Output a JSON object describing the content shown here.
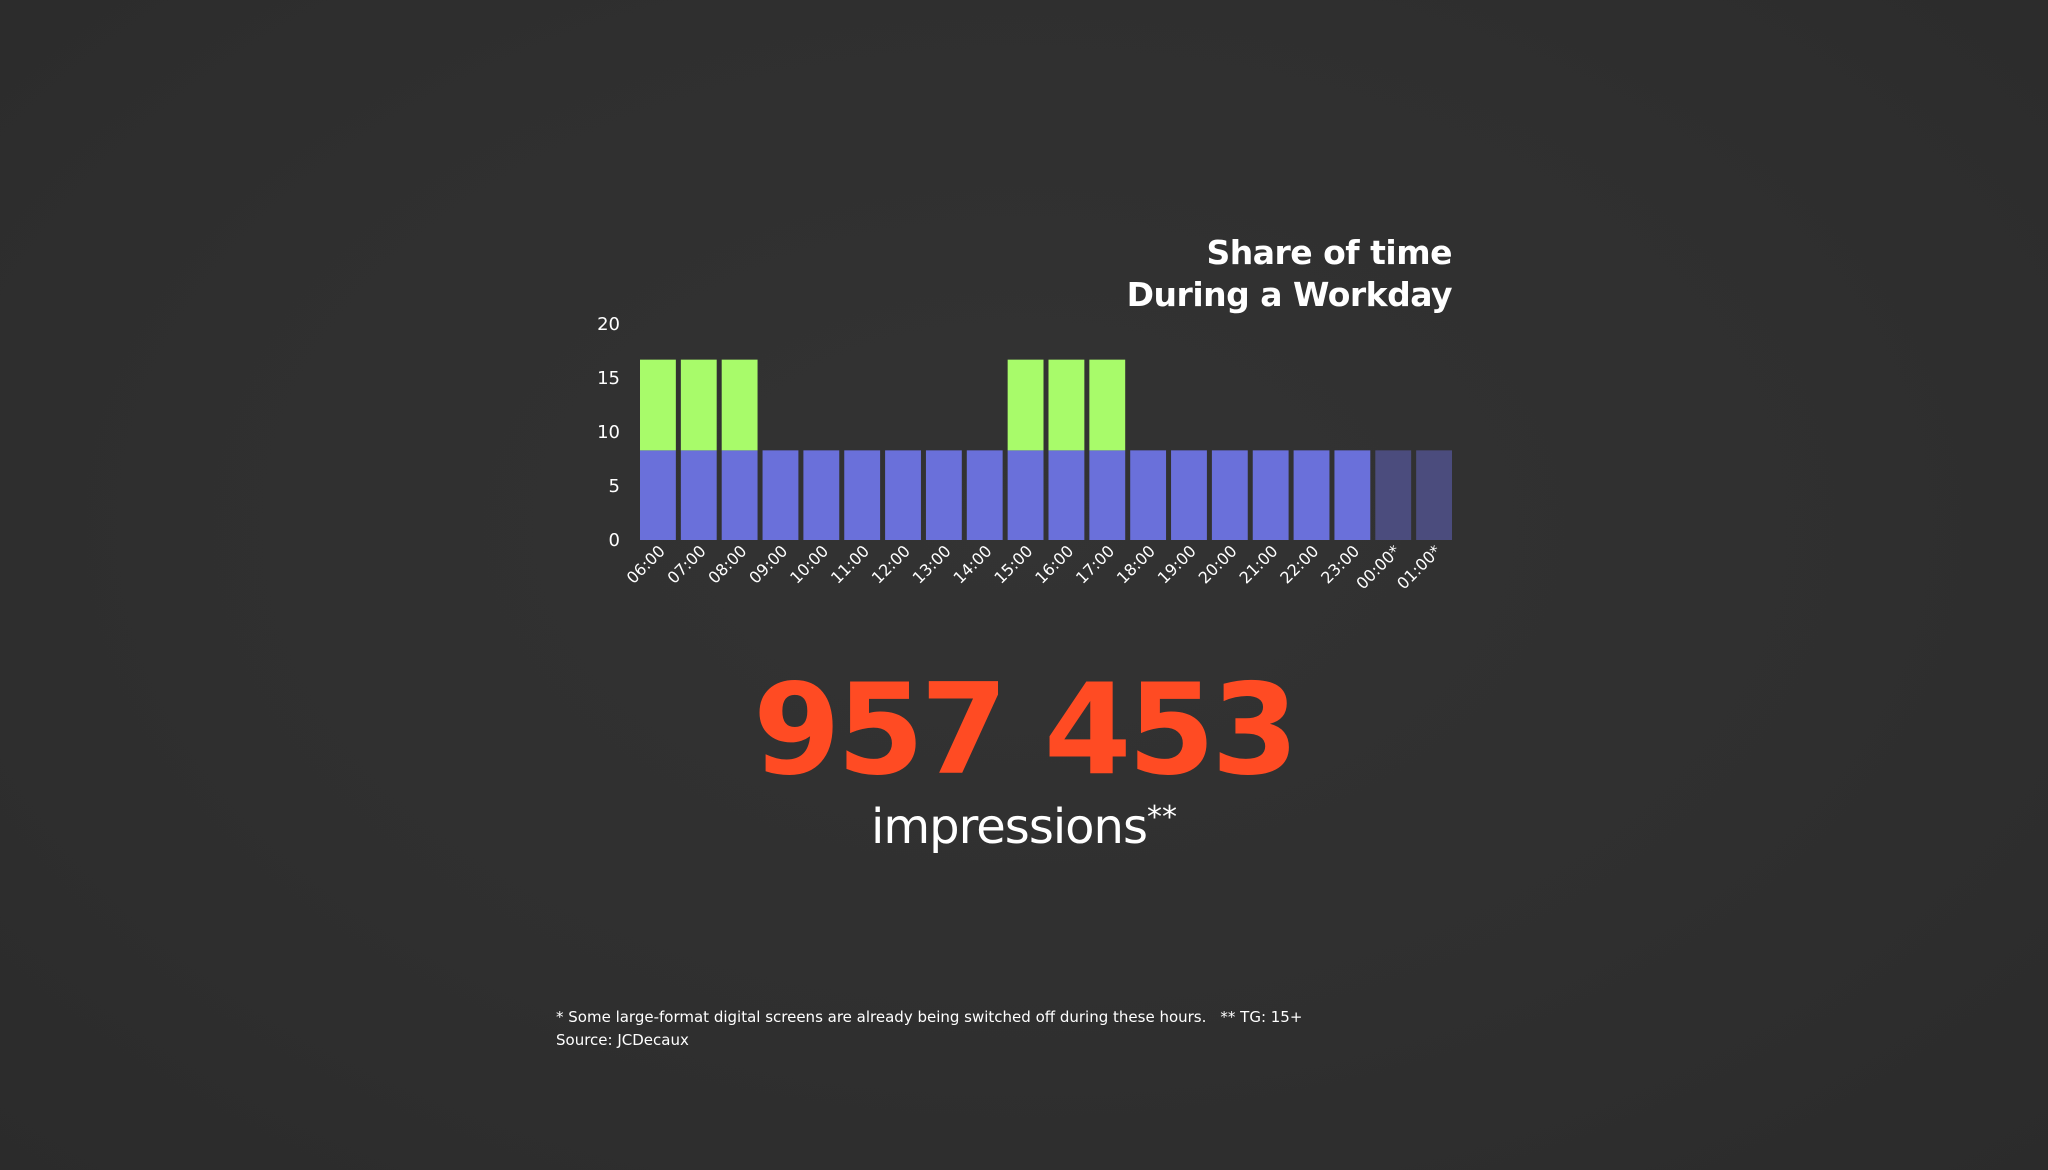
{
  "chart_data": {
    "type": "bar",
    "title_lines": [
      "Share of time",
      "During a Workday"
    ],
    "categories": [
      "06:00",
      "07:00",
      "08:00",
      "09:00",
      "10:00",
      "11:00",
      "12:00",
      "13:00",
      "14:00",
      "15:00",
      "16:00",
      "17:00",
      "18:00",
      "19:00",
      "20:00",
      "21:00",
      "22:00",
      "23:00",
      "00:00*",
      "01:00*"
    ],
    "values": [
      16.7,
      16.7,
      16.7,
      8.3,
      8.3,
      8.3,
      8.3,
      8.3,
      8.3,
      16.7,
      16.7,
      16.7,
      8.3,
      8.3,
      8.3,
      8.3,
      8.3,
      8.3,
      8.3,
      8.3
    ],
    "base_value": 8.3,
    "muted_categories": [
      "00:00*",
      "01:00*"
    ],
    "y_ticks": [
      0,
      5,
      10,
      15,
      20
    ],
    "ylim": [
      0,
      20
    ],
    "xlabel": "",
    "ylabel": "",
    "grid": false,
    "colors": {
      "base": "#6a70da",
      "peak": "#a8fb6a",
      "muted": "#4b4c7d"
    }
  },
  "headline": {
    "number": "957 453",
    "label": "impressions",
    "label_marker": "**",
    "number_color": "#ff4b23"
  },
  "footnotes": {
    "note_1": "* Some large-format digital screens are already being switched off during these hours.",
    "note_2": "** TG: 15+",
    "source": "Source: JCDecaux"
  }
}
